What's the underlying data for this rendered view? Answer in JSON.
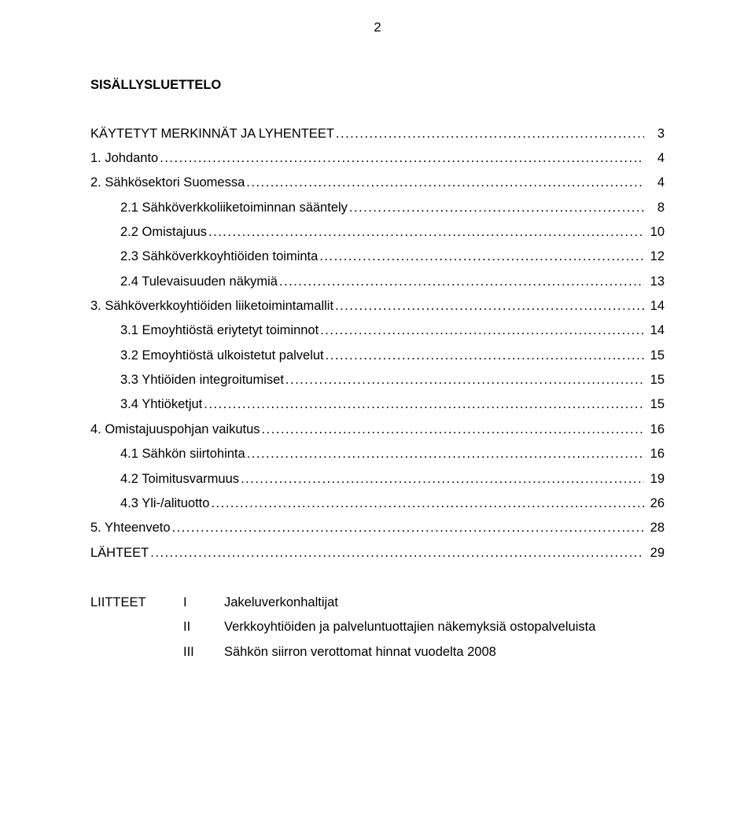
{
  "page_number": "2",
  "title": "SISÄLLYSLUETTELO",
  "toc": [
    {
      "label": "KÄYTETYT MERKINNÄT JA LYHENTEET",
      "page": "3",
      "indent": 0
    },
    {
      "label": "1.    Johdanto",
      "page": "4",
      "indent": 0
    },
    {
      "label": "2.    Sähkösektori Suomessa",
      "page": "4",
      "indent": 0
    },
    {
      "label": "2.1    Sähköverkkoliiketoiminnan sääntely",
      "page": "8",
      "indent": 1
    },
    {
      "label": "2.2    Omistajuus",
      "page": "10",
      "indent": 1
    },
    {
      "label": "2.3    Sähköverkkoyhtiöiden toiminta",
      "page": "12",
      "indent": 1
    },
    {
      "label": "2.4    Tulevaisuuden näkymiä",
      "page": "13",
      "indent": 1
    },
    {
      "label": "3.    Sähköverkkoyhtiöiden liiketoimintamallit",
      "page": "14",
      "indent": 0
    },
    {
      "label": "3.1    Emoyhtiöstä eriytetyt toiminnot",
      "page": "14",
      "indent": 1
    },
    {
      "label": "3.2    Emoyhtiöstä ulkoistetut palvelut",
      "page": "15",
      "indent": 1
    },
    {
      "label": "3.3    Yhtiöiden integroitumiset",
      "page": "15",
      "indent": 1
    },
    {
      "label": "3.4    Yhtiöketjut",
      "page": "15",
      "indent": 1
    },
    {
      "label": "4.    Omistajuuspohjan vaikutus",
      "page": "16",
      "indent": 0
    },
    {
      "label": "4.1    Sähkön siirtohinta",
      "page": "16",
      "indent": 1
    },
    {
      "label": "4.2    Toimitusvarmuus",
      "page": "19",
      "indent": 1
    },
    {
      "label": "4.3    Yli-/alituotto",
      "page": "26",
      "indent": 1
    },
    {
      "label": "5.    Yhteenveto",
      "page": "28",
      "indent": 0
    },
    {
      "label": "LÄHTEET",
      "page": "29",
      "indent": 0
    }
  ],
  "appendix_head": "LIITTEET",
  "appendix": [
    {
      "roman": "I",
      "desc": "Jakeluverkonhaltijat"
    },
    {
      "roman": "II",
      "desc": "Verkkoyhtiöiden ja palveluntuottajien näkemyksiä ostopalveluista"
    },
    {
      "roman": "III",
      "desc": "Sähkön siirron verottomat hinnat vuodelta 2008"
    }
  ],
  "colors": {
    "background": "#ffffff",
    "text": "#000000"
  },
  "typography": {
    "font_family": "Arial",
    "body_size_pt": 12,
    "line_height": 1.9
  }
}
